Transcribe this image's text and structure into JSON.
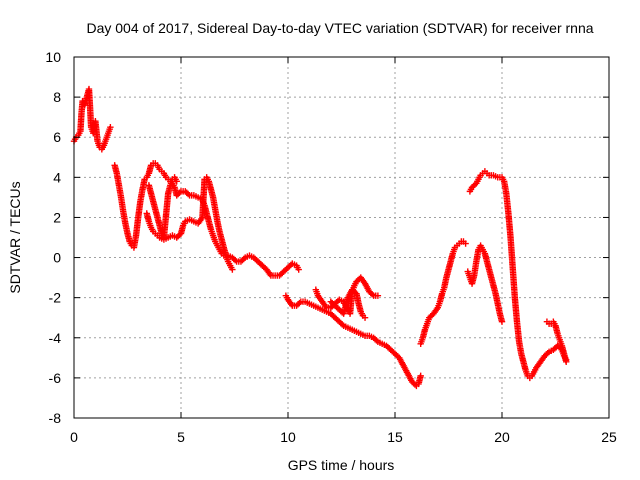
{
  "chart_data": {
    "type": "scatter",
    "title": "Day 004 of 2017, Sidereal Day-to-day VTEC variation (SDTVAR) for receiver rnna",
    "xlabel": "GPS time / hours",
    "ylabel": "SDTVAR / TECUs",
    "xlim": [
      0,
      25
    ],
    "ylim": [
      -8,
      10
    ],
    "xticks": [
      0,
      5,
      10,
      15,
      20,
      25
    ],
    "yticks": [
      -8,
      -6,
      -4,
      -2,
      0,
      2,
      4,
      6,
      8,
      10
    ],
    "grid": true,
    "marker": "+",
    "color": "#ff0000",
    "series": [
      {
        "name": "segment-1",
        "points": [
          [
            0.0,
            5.8
          ],
          [
            0.1,
            6.0
          ],
          [
            0.2,
            6.1
          ],
          [
            0.3,
            6.3
          ],
          [
            0.35,
            7.2
          ],
          [
            0.4,
            7.8
          ],
          [
            0.5,
            7.6
          ],
          [
            0.6,
            8.0
          ],
          [
            0.7,
            8.4
          ],
          [
            0.75,
            7.5
          ],
          [
            0.8,
            6.5
          ],
          [
            0.9,
            6.2
          ],
          [
            1.0,
            6.8
          ],
          [
            1.05,
            6.3
          ],
          [
            1.1,
            5.8
          ],
          [
            1.2,
            5.5
          ],
          [
            1.3,
            5.4
          ],
          [
            1.4,
            5.6
          ],
          [
            1.5,
            5.9
          ],
          [
            1.6,
            6.2
          ],
          [
            1.7,
            6.5
          ]
        ]
      },
      {
        "name": "segment-2",
        "points": [
          [
            1.9,
            4.6
          ],
          [
            2.0,
            4.2
          ],
          [
            2.1,
            3.6
          ],
          [
            2.2,
            3.0
          ],
          [
            2.3,
            2.3
          ],
          [
            2.4,
            1.7
          ],
          [
            2.5,
            1.2
          ],
          [
            2.6,
            0.8
          ],
          [
            2.7,
            0.6
          ],
          [
            2.8,
            0.5
          ],
          [
            2.9,
            1.1
          ],
          [
            3.0,
            2.0
          ],
          [
            3.1,
            2.8
          ],
          [
            3.2,
            3.4
          ],
          [
            3.3,
            3.9
          ],
          [
            3.4,
            4.0
          ],
          [
            3.5,
            4.2
          ],
          [
            3.6,
            4.6
          ],
          [
            3.7,
            4.7
          ],
          [
            3.8,
            4.7
          ],
          [
            3.9,
            4.6
          ],
          [
            4.0,
            4.4
          ],
          [
            4.1,
            4.3
          ],
          [
            4.2,
            4.2
          ],
          [
            4.3,
            4.0
          ],
          [
            4.4,
            3.9
          ],
          [
            4.5,
            3.8
          ],
          [
            4.6,
            3.7
          ],
          [
            4.7,
            3.5
          ],
          [
            4.8,
            3.1
          ],
          [
            5.0,
            3.3
          ],
          [
            5.2,
            3.3
          ],
          [
            5.4,
            3.1
          ],
          [
            5.6,
            3.1
          ],
          [
            5.8,
            3.0
          ],
          [
            6.0,
            2.9
          ],
          [
            6.1,
            2.6
          ],
          [
            6.2,
            2.2
          ],
          [
            6.3,
            1.8
          ],
          [
            6.4,
            1.4
          ],
          [
            6.5,
            1.1
          ],
          [
            6.6,
            0.8
          ],
          [
            6.7,
            0.6
          ],
          [
            6.8,
            0.4
          ],
          [
            6.9,
            0.2
          ],
          [
            7.0,
            0.1
          ],
          [
            7.2,
            0.1
          ],
          [
            7.4,
            0.0
          ],
          [
            7.6,
            -0.2
          ],
          [
            7.8,
            -0.2
          ],
          [
            8.0,
            0.0
          ],
          [
            8.2,
            0.1
          ],
          [
            8.4,
            0.0
          ],
          [
            8.6,
            -0.2
          ],
          [
            8.8,
            -0.4
          ],
          [
            9.0,
            -0.6
          ],
          [
            9.2,
            -0.9
          ],
          [
            9.4,
            -0.9
          ],
          [
            9.6,
            -0.9
          ],
          [
            9.8,
            -0.7
          ],
          [
            10.0,
            -0.5
          ],
          [
            10.2,
            -0.3
          ],
          [
            10.4,
            -0.4
          ],
          [
            10.5,
            -0.6
          ]
        ]
      },
      {
        "name": "segment-3",
        "points": [
          [
            3.4,
            2.2
          ],
          [
            3.5,
            1.8
          ],
          [
            3.6,
            1.5
          ],
          [
            3.7,
            1.3
          ],
          [
            3.8,
            1.2
          ],
          [
            3.9,
            1.1
          ],
          [
            4.0,
            1.0
          ],
          [
            4.2,
            0.9
          ],
          [
            4.4,
            1.0
          ],
          [
            4.6,
            1.1
          ],
          [
            4.8,
            1.0
          ],
          [
            5.0,
            1.2
          ],
          [
            5.1,
            1.6
          ],
          [
            5.2,
            1.8
          ],
          [
            5.4,
            1.9
          ],
          [
            5.6,
            1.8
          ],
          [
            5.8,
            1.7
          ],
          [
            6.0,
            2.0
          ],
          [
            6.1,
            3.9
          ],
          [
            6.2,
            4.0
          ],
          [
            6.3,
            3.8
          ],
          [
            6.4,
            3.4
          ],
          [
            6.5,
            3.0
          ],
          [
            6.6,
            2.4
          ],
          [
            6.7,
            1.8
          ],
          [
            6.8,
            1.3
          ],
          [
            6.9,
            0.9
          ],
          [
            7.0,
            0.5
          ],
          [
            7.1,
            0.1
          ],
          [
            7.2,
            -0.2
          ],
          [
            7.3,
            -0.4
          ],
          [
            7.4,
            -0.6
          ]
        ]
      },
      {
        "name": "segment-4",
        "points": [
          [
            3.5,
            3.6
          ],
          [
            3.6,
            3.2
          ],
          [
            3.7,
            2.8
          ],
          [
            3.8,
            2.4
          ],
          [
            3.9,
            2.0
          ],
          [
            4.0,
            1.6
          ],
          [
            4.1,
            1.2
          ],
          [
            4.2,
            1.0
          ],
          [
            4.4,
            3.2
          ],
          [
            4.5,
            3.6
          ],
          [
            4.6,
            3.9
          ],
          [
            4.7,
            4.0
          ],
          [
            4.8,
            3.8
          ]
        ]
      },
      {
        "name": "segment-5",
        "points": [
          [
            9.9,
            -1.9
          ],
          [
            10.0,
            -2.1
          ],
          [
            10.2,
            -2.4
          ],
          [
            10.4,
            -2.4
          ],
          [
            10.6,
            -2.2
          ],
          [
            10.8,
            -2.2
          ],
          [
            11.0,
            -2.3
          ],
          [
            11.2,
            -2.4
          ],
          [
            11.4,
            -2.5
          ],
          [
            11.6,
            -2.6
          ],
          [
            11.8,
            -2.7
          ],
          [
            12.0,
            -2.8
          ],
          [
            12.2,
            -3.0
          ],
          [
            12.4,
            -3.2
          ],
          [
            12.6,
            -3.4
          ],
          [
            12.8,
            -3.5
          ],
          [
            13.0,
            -3.6
          ],
          [
            13.2,
            -3.7
          ],
          [
            13.4,
            -3.8
          ],
          [
            13.6,
            -3.9
          ],
          [
            13.8,
            -3.9
          ],
          [
            14.0,
            -4.0
          ],
          [
            14.2,
            -4.2
          ],
          [
            14.4,
            -4.3
          ],
          [
            14.6,
            -4.4
          ],
          [
            14.8,
            -4.6
          ],
          [
            15.0,
            -4.8
          ],
          [
            15.2,
            -5.0
          ],
          [
            15.4,
            -5.4
          ],
          [
            15.6,
            -5.8
          ],
          [
            15.8,
            -6.2
          ],
          [
            16.0,
            -6.4
          ],
          [
            16.1,
            -6.3
          ],
          [
            16.2,
            -5.9
          ]
        ]
      },
      {
        "name": "segment-6",
        "points": [
          [
            11.3,
            -1.6
          ],
          [
            11.4,
            -1.9
          ],
          [
            11.6,
            -2.2
          ],
          [
            11.8,
            -2.5
          ],
          [
            12.0,
            -2.5
          ],
          [
            12.2,
            -2.3
          ],
          [
            12.4,
            -2.1
          ],
          [
            12.6,
            -2.2
          ],
          [
            12.8,
            -2.6
          ],
          [
            12.9,
            -2.8
          ],
          [
            13.0,
            -1.7
          ],
          [
            13.1,
            -1.4
          ],
          [
            13.2,
            -1.2
          ],
          [
            13.4,
            -1.0
          ],
          [
            13.6,
            -1.3
          ],
          [
            13.8,
            -1.7
          ],
          [
            14.0,
            -1.9
          ],
          [
            14.2,
            -1.9
          ]
        ]
      },
      {
        "name": "segment-7",
        "points": [
          [
            12.0,
            -2.2
          ],
          [
            12.2,
            -2.4
          ],
          [
            12.4,
            -2.6
          ],
          [
            12.6,
            -2.8
          ],
          [
            12.8,
            -2.0
          ],
          [
            13.0,
            -1.6
          ],
          [
            13.2,
            -1.8
          ],
          [
            13.3,
            -2.3
          ],
          [
            13.4,
            -2.7
          ],
          [
            13.5,
            -2.9
          ],
          [
            13.6,
            -3.0
          ]
        ]
      },
      {
        "name": "segment-8",
        "points": [
          [
            16.2,
            -4.3
          ],
          [
            16.3,
            -4.0
          ],
          [
            16.4,
            -3.6
          ],
          [
            16.5,
            -3.3
          ],
          [
            16.6,
            -3.0
          ],
          [
            16.8,
            -2.8
          ],
          [
            17.0,
            -2.5
          ],
          [
            17.1,
            -2.2
          ],
          [
            17.2,
            -1.8
          ],
          [
            17.3,
            -1.5
          ],
          [
            17.4,
            -1.0
          ],
          [
            17.5,
            -0.6
          ],
          [
            17.6,
            -0.2
          ],
          [
            17.7,
            0.2
          ],
          [
            17.8,
            0.5
          ],
          [
            17.9,
            0.6
          ],
          [
            18.0,
            0.7
          ],
          [
            18.1,
            0.8
          ],
          [
            18.2,
            0.8
          ],
          [
            18.3,
            0.7
          ]
        ]
      },
      {
        "name": "segment-9",
        "points": [
          [
            18.4,
            -0.7
          ],
          [
            18.5,
            -1.0
          ],
          [
            18.6,
            -1.3
          ],
          [
            18.7,
            -0.9
          ],
          [
            18.8,
            -0.2
          ],
          [
            18.9,
            0.4
          ],
          [
            19.0,
            0.6
          ],
          [
            19.1,
            0.4
          ],
          [
            19.2,
            0.2
          ],
          [
            19.3,
            -0.2
          ],
          [
            19.4,
            -0.6
          ],
          [
            19.5,
            -1.0
          ],
          [
            19.6,
            -1.4
          ],
          [
            19.7,
            -1.8
          ],
          [
            19.8,
            -2.3
          ],
          [
            19.9,
            -2.8
          ],
          [
            20.0,
            -3.2
          ]
        ]
      },
      {
        "name": "segment-10",
        "points": [
          [
            18.5,
            3.3
          ],
          [
            18.6,
            3.5
          ],
          [
            18.8,
            3.7
          ],
          [
            18.9,
            3.9
          ],
          [
            19.0,
            4.1
          ],
          [
            19.1,
            4.2
          ],
          [
            19.2,
            4.3
          ],
          [
            19.3,
            4.2
          ],
          [
            19.4,
            4.1
          ],
          [
            19.6,
            4.1
          ],
          [
            19.8,
            4.0
          ],
          [
            20.0,
            4.0
          ],
          [
            20.1,
            3.8
          ],
          [
            20.2,
            3.2
          ],
          [
            20.3,
            2.2
          ],
          [
            20.4,
            1.0
          ],
          [
            20.5,
            -0.5
          ],
          [
            20.6,
            -2.0
          ],
          [
            20.7,
            -3.2
          ],
          [
            20.8,
            -4.2
          ],
          [
            20.9,
            -4.8
          ],
          [
            21.0,
            -5.2
          ],
          [
            21.1,
            -5.6
          ],
          [
            21.2,
            -5.9
          ],
          [
            21.3,
            -6.0
          ],
          [
            21.4,
            -5.9
          ],
          [
            21.5,
            -5.7
          ],
          [
            21.6,
            -5.5
          ],
          [
            21.8,
            -5.2
          ],
          [
            22.0,
            -4.9
          ],
          [
            22.2,
            -4.7
          ],
          [
            22.4,
            -4.6
          ],
          [
            22.6,
            -4.4
          ],
          [
            22.8,
            -4.6
          ],
          [
            22.9,
            -4.9
          ],
          [
            23.0,
            -5.1
          ]
        ]
      },
      {
        "name": "segment-11",
        "points": [
          [
            22.1,
            -3.2
          ],
          [
            22.2,
            -3.3
          ],
          [
            22.3,
            -3.3
          ],
          [
            22.4,
            -3.2
          ],
          [
            22.5,
            -3.4
          ],
          [
            22.6,
            -3.8
          ],
          [
            22.7,
            -4.1
          ],
          [
            22.8,
            -4.4
          ],
          [
            22.9,
            -4.8
          ],
          [
            23.0,
            -5.2
          ]
        ]
      }
    ]
  }
}
